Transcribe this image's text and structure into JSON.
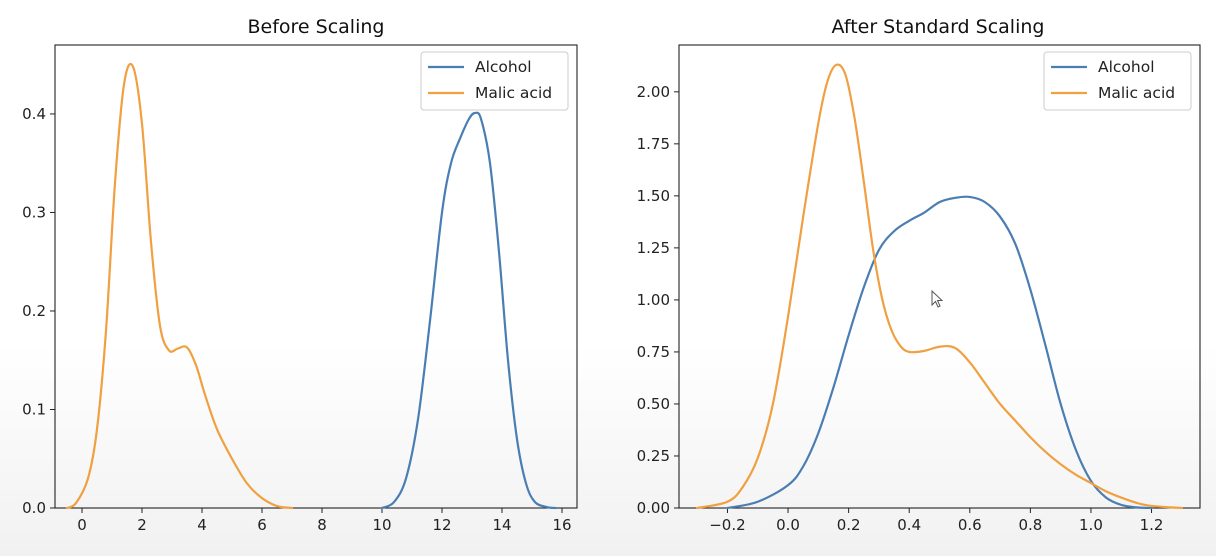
{
  "chart_data": [
    {
      "type": "line",
      "title": "Before Scaling",
      "xlabel": "",
      "ylabel": "",
      "xlim": [
        -0.9,
        16.5
      ],
      "ylim": [
        0,
        0.47
      ],
      "xticks": [
        0,
        2,
        4,
        6,
        8,
        10,
        12,
        14,
        16
      ],
      "yticks": [
        0.0,
        0.1,
        0.2,
        0.3,
        0.4
      ],
      "xtick_labels": [
        "0",
        "2",
        "4",
        "6",
        "8",
        "10",
        "12",
        "14",
        "16"
      ],
      "ytick_labels": [
        "0.0",
        "0.1",
        "0.2",
        "0.3",
        "0.4"
      ],
      "grid": false,
      "legend": "top-right",
      "series": [
        {
          "name": "Alcohol",
          "color": "#4a7eb3",
          "x": [
            10.0,
            10.4,
            10.8,
            11.2,
            11.6,
            12.0,
            12.3,
            12.6,
            12.9,
            13.1,
            13.3,
            13.6,
            13.9,
            14.2,
            14.5,
            14.8,
            15.1,
            15.5,
            15.8
          ],
          "y": [
            0.0,
            0.006,
            0.03,
            0.09,
            0.19,
            0.3,
            0.35,
            0.375,
            0.395,
            0.401,
            0.395,
            0.35,
            0.26,
            0.15,
            0.07,
            0.025,
            0.006,
            0.001,
            0.0
          ]
        },
        {
          "name": "Malic acid",
          "color": "#f0a040",
          "x": [
            -0.5,
            -0.2,
            0.2,
            0.5,
            0.8,
            1.1,
            1.4,
            1.7,
            2.0,
            2.3,
            2.6,
            2.9,
            3.2,
            3.5,
            3.8,
            4.1,
            4.5,
            5.0,
            5.5,
            6.0,
            6.5,
            7.0
          ],
          "y": [
            0.0,
            0.005,
            0.03,
            0.08,
            0.18,
            0.33,
            0.43,
            0.448,
            0.39,
            0.27,
            0.185,
            0.16,
            0.162,
            0.163,
            0.145,
            0.115,
            0.08,
            0.05,
            0.025,
            0.01,
            0.002,
            0.0
          ]
        }
      ]
    },
    {
      "type": "line",
      "title": "After Standard Scaling",
      "xlabel": "",
      "ylabel": "",
      "xlim": [
        -0.36,
        1.36
      ],
      "ylim": [
        0,
        2.225
      ],
      "xticks": [
        -0.2,
        0.0,
        0.2,
        0.4,
        0.6,
        0.8,
        1.0,
        1.2
      ],
      "yticks": [
        0.0,
        0.25,
        0.5,
        0.75,
        1.0,
        1.25,
        1.5,
        1.75,
        2.0
      ],
      "xtick_labels": [
        "−0.2",
        "0.0",
        "0.2",
        "0.4",
        "0.6",
        "0.8",
        "1.0",
        "1.2"
      ],
      "ytick_labels": [
        "0.00",
        "0.25",
        "0.50",
        "0.75",
        "1.00",
        "1.25",
        "1.50",
        "1.75",
        "2.00"
      ],
      "grid": false,
      "legend": "top-right",
      "series": [
        {
          "name": "Alcohol",
          "color": "#4a7eb3",
          "x": [
            -0.2,
            -0.1,
            0.0,
            0.05,
            0.1,
            0.15,
            0.2,
            0.25,
            0.3,
            0.35,
            0.4,
            0.45,
            0.5,
            0.55,
            0.6,
            0.65,
            0.7,
            0.75,
            0.8,
            0.85,
            0.9,
            0.95,
            1.0,
            1.05,
            1.1,
            1.15,
            1.2
          ],
          "y": [
            0.0,
            0.03,
            0.11,
            0.2,
            0.36,
            0.58,
            0.83,
            1.06,
            1.24,
            1.33,
            1.38,
            1.42,
            1.47,
            1.49,
            1.495,
            1.47,
            1.4,
            1.27,
            1.05,
            0.78,
            0.5,
            0.28,
            0.13,
            0.05,
            0.015,
            0.003,
            0.0
          ]
        },
        {
          "name": "Malic acid",
          "color": "#f0a040",
          "x": [
            -0.3,
            -0.2,
            -0.15,
            -0.1,
            -0.05,
            0.0,
            0.05,
            0.1,
            0.13,
            0.16,
            0.19,
            0.22,
            0.25,
            0.28,
            0.31,
            0.34,
            0.37,
            0.4,
            0.45,
            0.5,
            0.55,
            0.6,
            0.65,
            0.7,
            0.75,
            0.8,
            0.85,
            0.9,
            0.95,
            1.0,
            1.05,
            1.1,
            1.15,
            1.2,
            1.3
          ],
          "y": [
            0.0,
            0.03,
            0.1,
            0.24,
            0.5,
            0.92,
            1.4,
            1.85,
            2.05,
            2.13,
            2.08,
            1.87,
            1.57,
            1.25,
            1.01,
            0.86,
            0.78,
            0.75,
            0.755,
            0.775,
            0.77,
            0.7,
            0.6,
            0.5,
            0.42,
            0.34,
            0.27,
            0.21,
            0.16,
            0.12,
            0.08,
            0.05,
            0.025,
            0.01,
            0.0
          ]
        }
      ]
    }
  ]
}
